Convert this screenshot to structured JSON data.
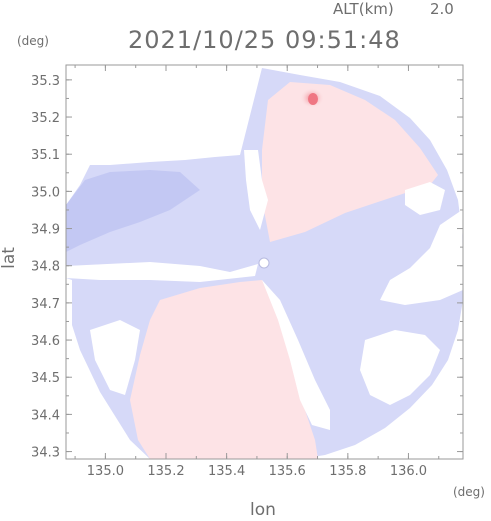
{
  "header": {
    "datetime": "2021/10/25 09:51:48",
    "alt_label": "ALT(km)",
    "alt_value": "2.0"
  },
  "units": {
    "y": "(deg)",
    "x": "(deg)"
  },
  "chart_data": {
    "type": "heatmap",
    "xlabel": "lon",
    "ylabel": "lat",
    "xlim": [
      134.87,
      136.18
    ],
    "ylim": [
      34.28,
      35.34
    ],
    "x_ticks": [
      "135.0",
      "135.2",
      "135.4",
      "135.6",
      "135.8",
      "136.0"
    ],
    "y_ticks": [
      "34.3",
      "34.4",
      "34.5",
      "34.6",
      "34.7",
      "34.8",
      "34.9",
      "35.0",
      "35.1",
      "35.2",
      "35.3"
    ],
    "radar_center": [
      135.52,
      34.82
    ],
    "grid": false,
    "colors": {
      "toward": "#c9cdf6",
      "toward_strong": "#b6bdf2",
      "away": "#fbe1e4",
      "away_strong": "#f07a86",
      "no_echo": "#ffffff"
    }
  }
}
